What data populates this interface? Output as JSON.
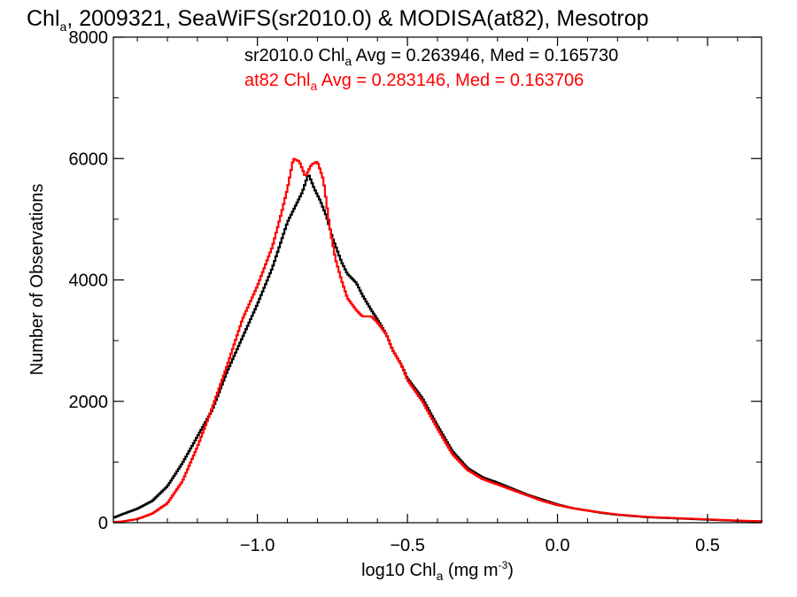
{
  "chart_data": {
    "type": "line",
    "step": true,
    "title": {
      "part1": "Chl",
      "sub": "a",
      "part2": ", 2009321, SeaWiFS(sr2010.0) & MODISA(at82), Mesotrop"
    },
    "xlabel": {
      "part1": "log10 Chl",
      "sub": "a",
      "part2": " (mg m",
      "sup": "-3",
      "part3": ")"
    },
    "ylabel": "Number of Observations",
    "xlim": [
      -1.48,
      0.68
    ],
    "ylim": [
      0,
      8000
    ],
    "x_ticks": [
      {
        "value": -1.0,
        "label": "−1.0"
      },
      {
        "value": -0.5,
        "label": "−0.5"
      },
      {
        "value": 0.0,
        "label": "0.0"
      },
      {
        "value": 0.5,
        "label": "0.5"
      }
    ],
    "y_ticks": [
      {
        "value": 0,
        "label": "0"
      },
      {
        "value": 2000,
        "label": "2000"
      },
      {
        "value": 4000,
        "label": "4000"
      },
      {
        "value": 6000,
        "label": "6000"
      },
      {
        "value": 8000,
        "label": "8000"
      }
    ],
    "grid": false,
    "annotations": [
      {
        "part1": "sr2010.0 Chl",
        "sub": "a",
        "part2": " Avg = 0.263946, Med = 0.165730",
        "color": "#000000"
      },
      {
        "part1": "at82 Chl",
        "sub": "a",
        "part2": " Avg = 0.283146, Med = 0.163706",
        "color": "#ff0000"
      }
    ],
    "series": [
      {
        "name": "sr2010.0",
        "color": "#000000",
        "points": [
          [
            -1.48,
            80
          ],
          [
            -1.45,
            140
          ],
          [
            -1.4,
            230
          ],
          [
            -1.35,
            360
          ],
          [
            -1.3,
            600
          ],
          [
            -1.25,
            980
          ],
          [
            -1.2,
            1420
          ],
          [
            -1.15,
            1860
          ],
          [
            -1.1,
            2500
          ],
          [
            -1.05,
            3050
          ],
          [
            -1.0,
            3600
          ],
          [
            -0.95,
            4200
          ],
          [
            -0.9,
            4950
          ],
          [
            -0.87,
            5250
          ],
          [
            -0.85,
            5450
          ],
          [
            -0.83,
            5750
          ],
          [
            -0.81,
            5500
          ],
          [
            -0.79,
            5300
          ],
          [
            -0.77,
            5050
          ],
          [
            -0.75,
            4700
          ],
          [
            -0.72,
            4300
          ],
          [
            -0.7,
            4100
          ],
          [
            -0.67,
            3950
          ],
          [
            -0.65,
            3750
          ],
          [
            -0.62,
            3500
          ],
          [
            -0.6,
            3350
          ],
          [
            -0.57,
            3100
          ],
          [
            -0.55,
            2850
          ],
          [
            -0.52,
            2600
          ],
          [
            -0.5,
            2380
          ],
          [
            -0.45,
            2050
          ],
          [
            -0.4,
            1600
          ],
          [
            -0.35,
            1180
          ],
          [
            -0.3,
            900
          ],
          [
            -0.25,
            750
          ],
          [
            -0.2,
            660
          ],
          [
            -0.15,
            560
          ],
          [
            -0.1,
            460
          ],
          [
            -0.05,
            380
          ],
          [
            0.0,
            300
          ],
          [
            0.05,
            240
          ],
          [
            0.1,
            200
          ],
          [
            0.15,
            160
          ],
          [
            0.2,
            130
          ],
          [
            0.3,
            90
          ],
          [
            0.4,
            70
          ],
          [
            0.5,
            50
          ],
          [
            0.6,
            30
          ],
          [
            0.68,
            20
          ]
        ]
      },
      {
        "name": "at82",
        "color": "#ff0000",
        "points": [
          [
            -1.48,
            10
          ],
          [
            -1.45,
            20
          ],
          [
            -1.4,
            60
          ],
          [
            -1.35,
            150
          ],
          [
            -1.3,
            320
          ],
          [
            -1.25,
            680
          ],
          [
            -1.2,
            1250
          ],
          [
            -1.15,
            1900
          ],
          [
            -1.1,
            2600
          ],
          [
            -1.05,
            3350
          ],
          [
            -1.0,
            3900
          ],
          [
            -0.95,
            4550
          ],
          [
            -0.92,
            5100
          ],
          [
            -0.9,
            5500
          ],
          [
            -0.88,
            6000
          ],
          [
            -0.86,
            5950
          ],
          [
            -0.84,
            5700
          ],
          [
            -0.82,
            5900
          ],
          [
            -0.8,
            5950
          ],
          [
            -0.78,
            5650
          ],
          [
            -0.76,
            4900
          ],
          [
            -0.74,
            4350
          ],
          [
            -0.72,
            4000
          ],
          [
            -0.7,
            3700
          ],
          [
            -0.67,
            3500
          ],
          [
            -0.65,
            3400
          ],
          [
            -0.62,
            3400
          ],
          [
            -0.6,
            3300
          ],
          [
            -0.57,
            3100
          ],
          [
            -0.55,
            2850
          ],
          [
            -0.52,
            2600
          ],
          [
            -0.5,
            2350
          ],
          [
            -0.45,
            2000
          ],
          [
            -0.4,
            1550
          ],
          [
            -0.35,
            1130
          ],
          [
            -0.3,
            870
          ],
          [
            -0.25,
            720
          ],
          [
            -0.2,
            630
          ],
          [
            -0.15,
            540
          ],
          [
            -0.1,
            450
          ],
          [
            -0.05,
            360
          ],
          [
            0.0,
            290
          ],
          [
            0.05,
            240
          ],
          [
            0.1,
            200
          ],
          [
            0.15,
            165
          ],
          [
            0.2,
            135
          ],
          [
            0.3,
            95
          ],
          [
            0.4,
            75
          ],
          [
            0.5,
            55
          ],
          [
            0.6,
            35
          ],
          [
            0.68,
            25
          ]
        ]
      }
    ]
  }
}
